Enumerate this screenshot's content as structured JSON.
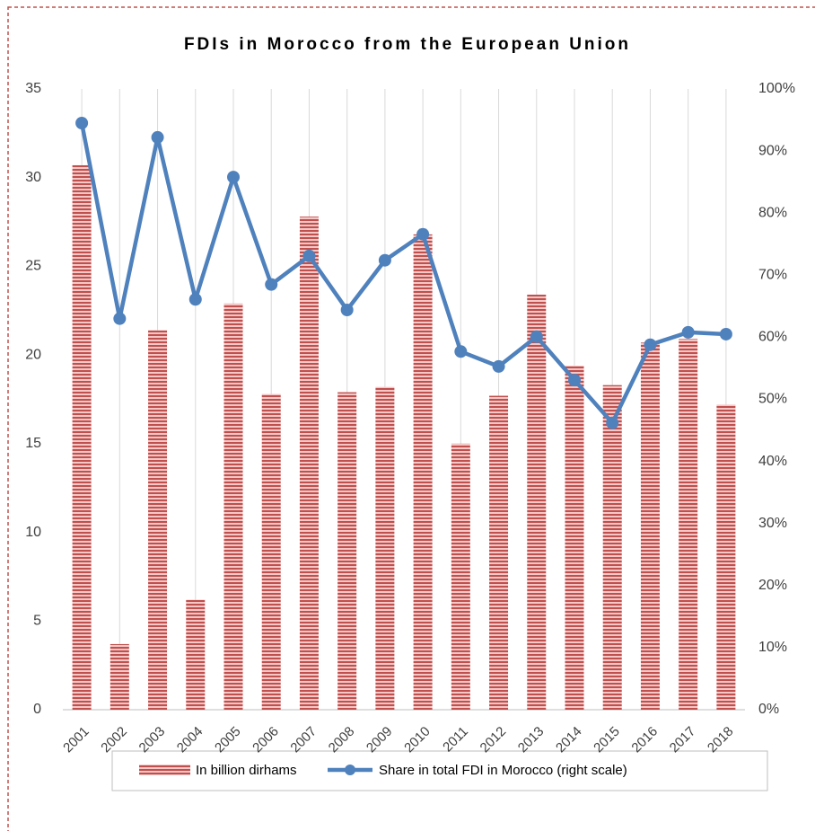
{
  "chart_data": {
    "type": "bar_line",
    "title": "FDIs in Morocco from the European Union",
    "categories": [
      "2001",
      "2002",
      "2003",
      "2004",
      "2005",
      "2006",
      "2007",
      "2008",
      "2009",
      "2010",
      "2011",
      "2012",
      "2013",
      "2014",
      "2015",
      "2016",
      "2017",
      "2018"
    ],
    "series": [
      {
        "name": "In billion dirhams",
        "type": "bar",
        "color": "#c0504d",
        "values": [
          30.7,
          3.7,
          21.4,
          6.2,
          22.9,
          17.8,
          27.8,
          17.9,
          18.2,
          26.8,
          15.0,
          17.7,
          23.4,
          19.4,
          18.3,
          20.7,
          20.9,
          17.2
        ]
      },
      {
        "name": "Share in total FDI in Morocco (right scale)",
        "type": "line",
        "axis": "y2",
        "color": "#4f81bd",
        "values": [
          94.5,
          63,
          92.2,
          66.1,
          85.8,
          68.5,
          73.1,
          64.4,
          72.4,
          76.6,
          57.7,
          55.3,
          60.1,
          53.1,
          46.2,
          58.8,
          60.8,
          60.5
        ]
      }
    ],
    "ylim": [
      0,
      35
    ],
    "yticks": [
      0,
      5,
      10,
      15,
      20,
      25,
      30,
      35
    ],
    "y2lim": [
      0,
      100
    ],
    "y2ticks": [
      {
        "value": 0,
        "label": "0%"
      },
      {
        "value": 10,
        "label": "10%"
      },
      {
        "value": 20,
        "label": "20%"
      },
      {
        "value": 30,
        "label": "30%"
      },
      {
        "value": 40,
        "label": "40%"
      },
      {
        "value": 50,
        "label": "50%"
      },
      {
        "value": 60,
        "label": "60%"
      },
      {
        "value": 70,
        "label": "70%"
      },
      {
        "value": 80,
        "label": "80%"
      },
      {
        "value": 90,
        "label": "90%"
      },
      {
        "value": 100,
        "label": "100%"
      }
    ],
    "grid": true,
    "legend": "bottom"
  }
}
